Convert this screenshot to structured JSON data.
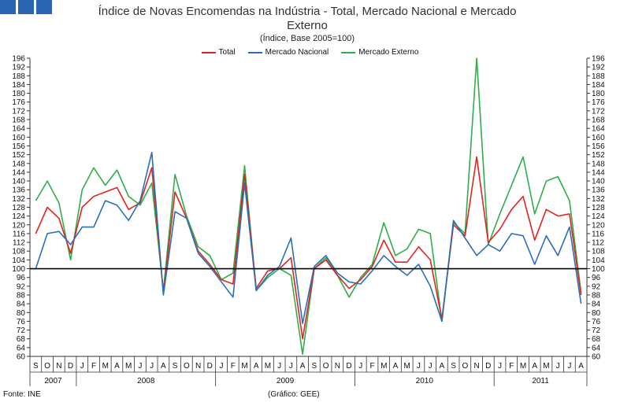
{
  "header": {
    "title_line1": "Índice de Novas Encomendas na Indústria - Total, Mercado Nacional e Mercado",
    "title_line2": "Externo",
    "subtitle": "(Índice, Base 2005=100)"
  },
  "footer": {
    "source": "Fonte: INE",
    "credit": "(Gráfico: GEE)"
  },
  "colors": {
    "logo": "#2b66b4",
    "total": "#e3231f",
    "nacional": "#2a6fb9",
    "externo": "#2fae4a",
    "baseline": "#000000"
  },
  "chart_data": {
    "type": "line",
    "title": "Índice de Novas Encomendas na Indústria - Total, Mercado Nacional e Mercado Externo",
    "subtitle": "(Índice, Base 2005=100)",
    "ylim": [
      60,
      196
    ],
    "ytick_step": 4,
    "reference_line": 100,
    "legend_position": "top-center",
    "month_labels": [
      "S",
      "O",
      "N",
      "D",
      "J",
      "F",
      "M",
      "A",
      "M",
      "J",
      "J",
      "A",
      "S",
      "O",
      "N",
      "D",
      "J",
      "F",
      "M",
      "A",
      "M",
      "J",
      "J",
      "A",
      "S",
      "O",
      "N",
      "D",
      "J",
      "F",
      "M",
      "A",
      "M",
      "J",
      "J",
      "A",
      "S",
      "O",
      "N",
      "D",
      "J",
      "F",
      "M",
      "A",
      "M",
      "J",
      "J",
      "A"
    ],
    "years": [
      {
        "label": "2007",
        "months": 4
      },
      {
        "label": "2008",
        "months": 12
      },
      {
        "label": "2009",
        "months": 12
      },
      {
        "label": "2010",
        "months": 12
      },
      {
        "label": "2011",
        "months": 8
      }
    ],
    "series": [
      {
        "name": "Total",
        "color": "#e3231f",
        "values": [
          116,
          128,
          123,
          107,
          128,
          133,
          135,
          137,
          127,
          130,
          146,
          89,
          135,
          123,
          108,
          102,
          95,
          93,
          143,
          91,
          99,
          100,
          105,
          68,
          100,
          104,
          97,
          91,
          95,
          101,
          113,
          103,
          103,
          110,
          104,
          77,
          120,
          115,
          151,
          112,
          118,
          127,
          133,
          113,
          127,
          124,
          125,
          88
        ]
      },
      {
        "name": "Mercado Nacional",
        "color": "#2a6fb9",
        "values": [
          100,
          116,
          117,
          111,
          119,
          119,
          131,
          129,
          122,
          131,
          153,
          88,
          126,
          123,
          107,
          101,
          94,
          87,
          139,
          90,
          97,
          101,
          114,
          75,
          101,
          106,
          98,
          94,
          93,
          99,
          106,
          101,
          97,
          102,
          92,
          76,
          122,
          114,
          106,
          111,
          108,
          116,
          115,
          102,
          115,
          106,
          119,
          84
        ]
      },
      {
        "name": "Mercado Externo",
        "color": "#2fae4a",
        "values": [
          131,
          140,
          130,
          104,
          136,
          146,
          138,
          145,
          133,
          129,
          139,
          90,
          143,
          124,
          110,
          106,
          95,
          98,
          147,
          90,
          96,
          100,
          97,
          61,
          100,
          105,
          97,
          87,
          96,
          102,
          121,
          106,
          109,
          118,
          116,
          76,
          121,
          116,
          196,
          111,
          125,
          138,
          151,
          125,
          140,
          142,
          131,
          89
        ]
      }
    ]
  }
}
